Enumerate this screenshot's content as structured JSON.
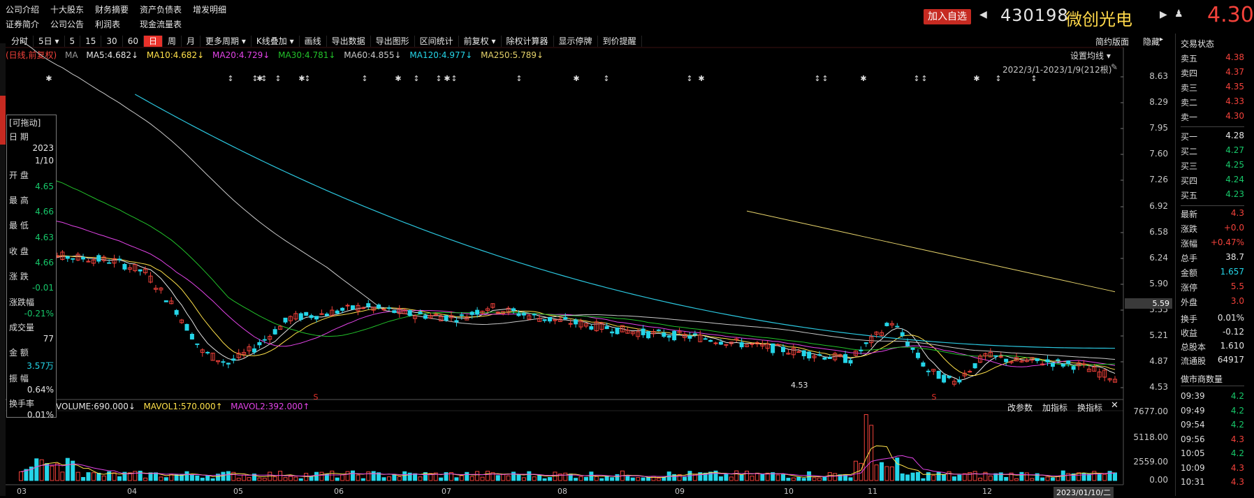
{
  "top_menu": {
    "row1": [
      "公司介绍",
      "十大股东",
      "财务摘要",
      "资产负债表",
      "增发明细"
    ],
    "row2": [
      "证券简介",
      "公司公告",
      "利润表",
      "现金流量表"
    ]
  },
  "header": {
    "add_watch": "加入自选",
    "code": "430198",
    "name": "微创光电",
    "price": "4.30"
  },
  "toolbar": {
    "items": [
      "分时",
      "5日",
      "5",
      "15",
      "30",
      "60",
      "日",
      "周",
      "月",
      "更多周期",
      "K线叠加",
      "画线",
      "导出数据",
      "导出图形",
      "区间统计",
      "前复权",
      "除权计算器",
      "显示停牌",
      "到价提醒"
    ],
    "active": "日",
    "right": [
      "简约版面",
      "隐藏"
    ]
  },
  "ma_legend": {
    "mode": "(日线,前复权)",
    "ma": "MA",
    "ma5": "MA5:4.682↓",
    "ma10": "MA10:4.682↓",
    "ma20": "MA20:4.729↓",
    "ma30": "MA30:4.781↓",
    "ma60": "MA60:4.855↓",
    "ma120": "MA120:4.977↓",
    "ma250": "MA250:5.789↓",
    "settings": "设置均线",
    "range": "2022/3/1-2023/1/9(212根)"
  },
  "price_axis": [
    "8.63",
    "8.29",
    "7.95",
    "7.60",
    "7.26",
    "6.92",
    "6.58",
    "6.24",
    "5.90",
    "5.55",
    "5.21",
    "4.87",
    "4.53"
  ],
  "price_marker": "5.59",
  "low_label": "4.53",
  "volume_axis": [
    "7677.00",
    "5118.00",
    "2559.00",
    "0.00"
  ],
  "volume_legend": {
    "vol": "VOLUME:690.000↓",
    "mavol1": "MAVOL1:570.000↑",
    "mavol2": "MAVOL2:392.000↑",
    "btn1": "改参数",
    "btn2": "加指标",
    "btn3": "换指标"
  },
  "x_axis": [
    "03",
    "04",
    "05",
    "06",
    "07",
    "08",
    "09",
    "10",
    "11",
    "12",
    "2023/01/10/二"
  ],
  "info_panel": {
    "title": "[可拖动]",
    "rows": [
      {
        "k": "日    期",
        "v": ""
      },
      {
        "k": "",
        "v": "2023"
      },
      {
        "k": "",
        "v": "1/10"
      },
      {
        "k": "开    盘",
        "v": ""
      },
      {
        "k": "",
        "v": "4.65"
      },
      {
        "k": "最    高",
        "v": ""
      },
      {
        "k": "",
        "v": "4.66"
      },
      {
        "k": "最    低",
        "v": ""
      },
      {
        "k": "",
        "v": "4.63"
      },
      {
        "k": "收    盘",
        "v": ""
      },
      {
        "k": "",
        "v": "4.66"
      },
      {
        "k": "涨    跌",
        "v": ""
      },
      {
        "k": "",
        "v": "-0.01"
      },
      {
        "k": "涨跌幅",
        "v": ""
      },
      {
        "k": "",
        "v": "-0.21%"
      },
      {
        "k": "成交量",
        "v": ""
      },
      {
        "k": "",
        "v": "77"
      },
      {
        "k": "金    额",
        "v": ""
      },
      {
        "k": "",
        "v": "3.57万"
      },
      {
        "k": "振    幅",
        "v": ""
      },
      {
        "k": "",
        "v": "0.64%"
      },
      {
        "k": "换手率",
        "v": ""
      },
      {
        "k": "",
        "v": "0.01%"
      }
    ]
  },
  "trade_panel": {
    "title": "交易状态",
    "sell": [
      {
        "k": "卖五",
        "v": "4.38"
      },
      {
        "k": "卖四",
        "v": "4.37"
      },
      {
        "k": "卖三",
        "v": "4.35"
      },
      {
        "k": "卖二",
        "v": "4.33"
      },
      {
        "k": "卖一",
        "v": "4.30"
      }
    ],
    "buy": [
      {
        "k": "买一",
        "v": "4.28"
      },
      {
        "k": "买二",
        "v": "4.27"
      },
      {
        "k": "买三",
        "v": "4.25"
      },
      {
        "k": "买四",
        "v": "4.24"
      },
      {
        "k": "买五",
        "v": "4.23"
      }
    ],
    "stats": [
      {
        "k": "最新",
        "v": "4.3",
        "c": "red"
      },
      {
        "k": "涨跌",
        "v": "+0.0",
        "c": "red"
      },
      {
        "k": "涨幅",
        "v": "+0.47%",
        "c": "red"
      },
      {
        "k": "总手",
        "v": "38.7",
        "c": "white"
      },
      {
        "k": "金额",
        "v": "1.657",
        "c": "cyan"
      },
      {
        "k": "涨停",
        "v": "5.5",
        "c": "red"
      },
      {
        "k": "外盘",
        "v": "3.0",
        "c": "red"
      }
    ],
    "stats2": [
      {
        "k": "换手",
        "v": "0.01%",
        "c": "white"
      },
      {
        "k": "收益",
        "v": "-0.12",
        "c": "white"
      },
      {
        "k": "总股本",
        "v": "1.610",
        "c": "white"
      },
      {
        "k": "流通股",
        "v": "64917",
        "c": "white"
      }
    ],
    "market_maker": "做市商数量",
    "ticks": [
      {
        "t": "09:39",
        "v": "4.2",
        "c": "green"
      },
      {
        "t": "09:49",
        "v": "4.2",
        "c": "green"
      },
      {
        "t": "09:54",
        "v": "4.2",
        "c": "green"
      },
      {
        "t": "09:56",
        "v": "4.3",
        "c": "red"
      },
      {
        "t": "10:05",
        "v": "4.2",
        "c": "green"
      },
      {
        "t": "10:09",
        "v": "4.3",
        "c": "red"
      },
      {
        "t": "10:31",
        "v": "4.3",
        "c": "red"
      }
    ]
  },
  "colors": {
    "up": "#f3423b",
    "down": "#25d5e8",
    "ma5": "#e6e6e6",
    "ma10": "#ffe14a",
    "ma20": "#e344e8",
    "ma30": "#22c12a",
    "ma60": "#c9c9c9",
    "ma120": "#2bc6de",
    "ma250": "#e6d36b"
  }
}
